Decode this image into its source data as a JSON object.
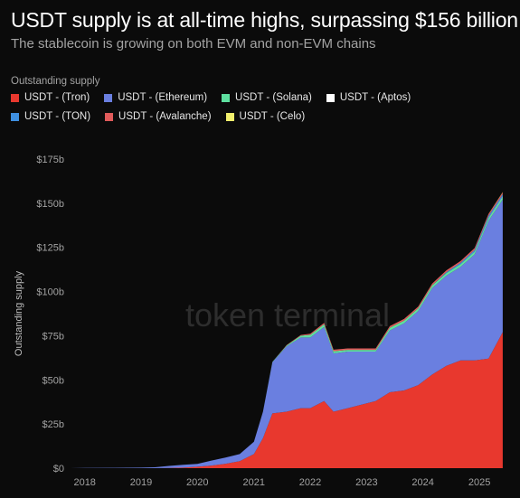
{
  "chart_data": {
    "type": "area",
    "title": "USDT supply is at all-time highs, surpassing $156 billion",
    "subtitle": "The stablecoin is growing on both EVM and non-EVM chains",
    "legend_title": "Outstanding supply",
    "ylabel": "Outstanding supply",
    "xlabel": "",
    "watermark": "token terminal",
    "ylim": [
      0,
      175
    ],
    "y_ticks": [
      "$0",
      "$25b",
      "$50b",
      "$75b",
      "$100b",
      "$125b",
      "$150b",
      "$175b"
    ],
    "x_ticks": [
      "2018",
      "2019",
      "2020",
      "2021",
      "2022",
      "2023",
      "2024",
      "2025"
    ],
    "x_domain": [
      "2017-10-01",
      "2025-07-01"
    ],
    "grid": false,
    "legend_position": "top-left",
    "x": [
      "2017-10",
      "2018-01",
      "2018-07",
      "2019-01",
      "2019-04",
      "2019-07",
      "2019-10",
      "2020-01",
      "2020-04",
      "2020-07",
      "2020-10",
      "2021-01",
      "2021-03",
      "2021-05",
      "2021-08",
      "2021-11",
      "2022-01",
      "2022-04",
      "2022-06",
      "2022-09",
      "2022-12",
      "2023-03",
      "2023-06",
      "2023-09",
      "2023-12",
      "2024-03",
      "2024-06",
      "2024-09",
      "2024-12",
      "2025-03",
      "2025-06"
    ],
    "series": [
      {
        "name": "USDT - (Tron)",
        "color": "#e8382e",
        "values": [
          0,
          0,
          0,
          0,
          0,
          0.1,
          0.3,
          0.8,
          1.5,
          2.5,
          4,
          8,
          17,
          31,
          32,
          34,
          34,
          38,
          32,
          34,
          36,
          38,
          43,
          44,
          47,
          53,
          58,
          61,
          61,
          62,
          77
        ]
      },
      {
        "name": "USDT - (Ethereum)",
        "color": "#6a7fe0",
        "values": [
          0,
          0.1,
          0.2,
          0.3,
          0.5,
          1.2,
          1.6,
          1.6,
          2.8,
          3.5,
          4.0,
          7,
          15,
          29,
          37,
          40,
          40,
          42,
          33,
          32,
          30,
          28,
          35,
          38,
          42,
          49,
          51,
          53,
          60,
          78,
          75
        ]
      },
      {
        "name": "USDT - (Solana)",
        "color": "#5ee0a0",
        "values": [
          0,
          0,
          0,
          0,
          0,
          0,
          0,
          0,
          0,
          0,
          0,
          0,
          0,
          0.2,
          0.5,
          1.0,
          1.5,
          1.5,
          1.2,
          1.0,
          1.0,
          1.0,
          1.5,
          1.5,
          1.5,
          1.5,
          1.5,
          1.5,
          1.5,
          1.5,
          1.5
        ]
      },
      {
        "name": "USDT - (Aptos)",
        "color": "#ffffff",
        "values": [
          0,
          0,
          0,
          0,
          0,
          0,
          0,
          0,
          0,
          0,
          0,
          0,
          0,
          0,
          0,
          0,
          0,
          0,
          0,
          0,
          0,
          0,
          0,
          0,
          0,
          0,
          0,
          0,
          0.1,
          0.2,
          0.3
        ]
      },
      {
        "name": "USDT - (TON)",
        "color": "#3e8fe0",
        "values": [
          0,
          0,
          0,
          0,
          0,
          0,
          0,
          0,
          0,
          0,
          0,
          0,
          0,
          0,
          0,
          0,
          0,
          0,
          0,
          0,
          0,
          0,
          0,
          0,
          0,
          0,
          0.5,
          0.8,
          1.0,
          1.2,
          1.3
        ]
      },
      {
        "name": "USDT - (Avalanche)",
        "color": "#e05a5a",
        "values": [
          0,
          0,
          0,
          0,
          0,
          0,
          0,
          0,
          0,
          0,
          0,
          0,
          0,
          0,
          0.2,
          0.4,
          0.6,
          0.8,
          0.9,
          0.8,
          0.8,
          0.8,
          1.0,
          1.0,
          1.0,
          1.0,
          1.0,
          1.0,
          1.0,
          1.0,
          1.0
        ]
      },
      {
        "name": "USDT - (Celo)",
        "color": "#f2ef6c",
        "values": [
          0,
          0,
          0,
          0,
          0,
          0,
          0,
          0,
          0,
          0,
          0,
          0,
          0,
          0,
          0,
          0,
          0,
          0,
          0,
          0,
          0,
          0,
          0,
          0,
          0,
          0,
          0,
          0,
          0,
          0.1,
          0.2
        ]
      }
    ]
  }
}
